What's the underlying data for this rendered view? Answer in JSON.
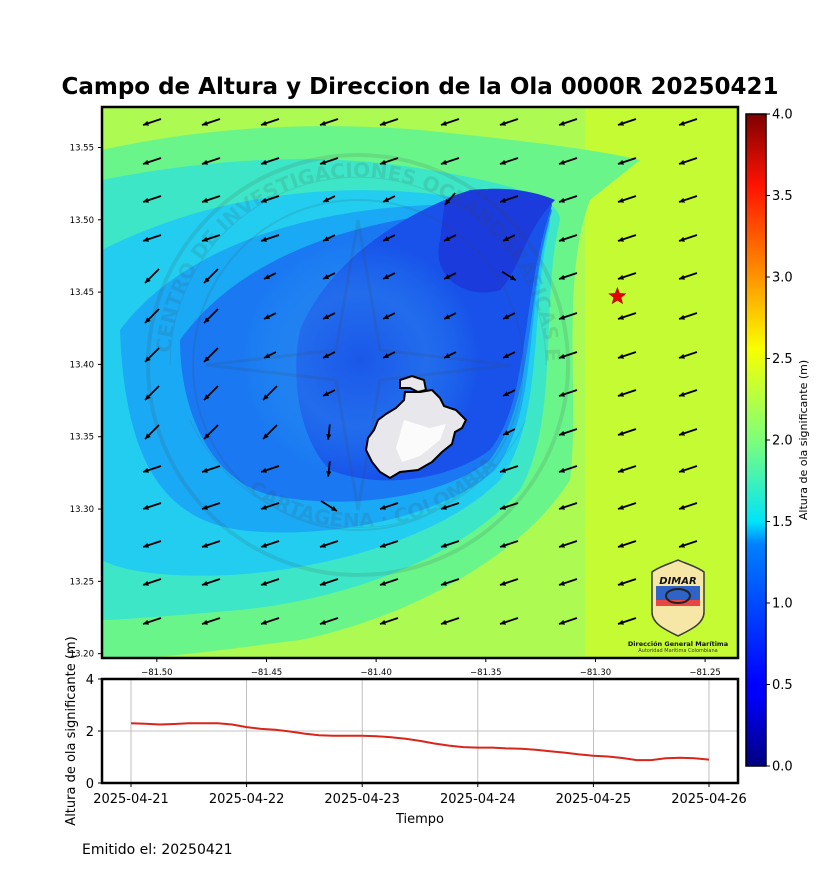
{
  "title": "Campo de Altura y Direccion de la Ola 0000R 20250421",
  "footer": "Emitido el: 20250421",
  "colorbar": {
    "label": "Altura de ola significante (m)",
    "ticks": [
      "0.0",
      "0.5",
      "1.0",
      "1.5",
      "2.0",
      "2.5",
      "3.0",
      "3.5",
      "4.0"
    ],
    "range": [
      0,
      4
    ],
    "colormap": "jet"
  },
  "map": {
    "x_ticks": [
      "−81.50",
      "−81.45",
      "−81.40",
      "−81.35",
      "−81.30",
      "−81.25"
    ],
    "y_ticks": [
      "13.55",
      "13.50",
      "13.45",
      "13.40",
      "13.35",
      "13.30",
      "13.25",
      "13.20"
    ],
    "xlim": [
      -81.525,
      -81.235
    ],
    "ylim": [
      13.197,
      13.578
    ],
    "marker": {
      "lon": -81.29,
      "lat": 13.447,
      "color": "#e00000"
    },
    "island_color": "#e8e8ec",
    "logo": {
      "name": "DIMAR",
      "line1": "Dirección General Marítima",
      "line2": "Autoridad Marítima Colombiana"
    },
    "watermark": {
      "top": "CENTRO DE INVESTIGACIONES OCEANOGRÁFICAS E HIDROGRÁFICAS",
      "bottom": "CARTAGENA · COLOMBIA"
    }
  },
  "chart_data": {
    "type": "line",
    "xlabel": "Tiempo",
    "ylabel": "Altura de ola significante (m)",
    "x_ticks": [
      "2025-04-21",
      "2025-04-22",
      "2025-04-23",
      "2025-04-24",
      "2025-04-25",
      "2025-04-26"
    ],
    "y_ticks": [
      "0",
      "2",
      "4"
    ],
    "ylim": [
      0,
      4
    ],
    "grid": true,
    "series": [
      {
        "color": "#d8261c",
        "x": [
          0,
          0.125,
          0.25,
          0.375,
          0.5,
          0.625,
          0.75,
          0.875,
          1,
          1.125,
          1.25,
          1.375,
          1.5,
          1.625,
          1.75,
          1.875,
          2,
          2.125,
          2.25,
          2.375,
          2.5,
          2.625,
          2.75,
          2.875,
          3,
          3.125,
          3.25,
          3.375,
          3.5,
          3.625,
          3.75,
          3.875,
          4,
          4.125,
          4.25,
          4.375,
          4.5,
          4.625,
          4.75,
          4.875,
          5
        ],
        "values": [
          2.3,
          2.28,
          2.25,
          2.27,
          2.3,
          2.3,
          2.3,
          2.25,
          2.15,
          2.08,
          2.05,
          1.98,
          1.9,
          1.84,
          1.82,
          1.82,
          1.82,
          1.8,
          1.76,
          1.7,
          1.62,
          1.52,
          1.44,
          1.38,
          1.36,
          1.36,
          1.33,
          1.32,
          1.28,
          1.22,
          1.17,
          1.1,
          1.05,
          1.02,
          0.96,
          0.88,
          0.88,
          0.95,
          0.97,
          0.95,
          0.9
        ]
      }
    ]
  }
}
